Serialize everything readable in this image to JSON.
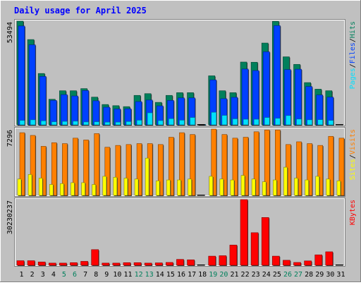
{
  "title": "Daily usage for April 2025",
  "colors": {
    "hits": "#00805c",
    "files": "#0040ff",
    "pages": "#00e0ff",
    "visits": "#ff8000",
    "sites": "#ffff00",
    "kbytes": "#ff0000",
    "weekday_label": "#000000",
    "weekend_label": "#00805c",
    "panel_bg": "#c0c0c0"
  },
  "chart_data": [
    {
      "type": "bar",
      "name": "hits-files-pages",
      "days": [
        "1",
        "2",
        "3",
        "4",
        "5",
        "6",
        "7",
        "8",
        "9",
        "10",
        "11",
        "12",
        "13",
        "14",
        "15",
        "16",
        "17",
        "18",
        "19",
        "20",
        "21",
        "22",
        "23",
        "24",
        "25",
        "26",
        "27",
        "28",
        "29",
        "30",
        "31"
      ],
      "weekend_days": [
        "5",
        "6",
        "12",
        "13",
        "19",
        "20",
        "26",
        "27"
      ],
      "y_max_label": "53494",
      "y_max": 53494,
      "legend": [
        "Pages",
        "/",
        "Files",
        "/",
        "Hits"
      ],
      "series": [
        {
          "name": "Hits",
          "values": [
            53494,
            44000,
            26500,
            13200,
            17600,
            17600,
            18700,
            14300,
            10500,
            9900,
            9400,
            15200,
            16100,
            11600,
            15200,
            16600,
            16600,
            200,
            25300,
            17600,
            16600,
            32400,
            32300,
            42200,
            53400,
            35100,
            31200,
            21800,
            18400,
            17600,
            0
          ]
        },
        {
          "name": "Files",
          "values": [
            51000,
            41300,
            25000,
            12600,
            15600,
            14900,
            17700,
            12400,
            9100,
            8200,
            8300,
            12000,
            12800,
            9800,
            12600,
            13900,
            13900,
            100,
            23200,
            13500,
            14200,
            28800,
            28000,
            37700,
            51200,
            28500,
            28700,
            19800,
            15400,
            14300,
            0
          ]
        },
        {
          "name": "Pages",
          "values": [
            2300,
            2600,
            2100,
            1600,
            1800,
            1900,
            1500,
            1600,
            1400,
            1400,
            1700,
            2400,
            6200,
            2200,
            3200,
            2400,
            3800,
            100,
            6500,
            4900,
            3100,
            2900,
            2900,
            3800,
            3400,
            4800,
            3000,
            2600,
            2700,
            2300,
            0
          ]
        }
      ]
    },
    {
      "type": "bar",
      "name": "visits-sites",
      "y_max_label": "7296",
      "y_max": 7296,
      "legend": [
        "Sites",
        "/",
        "Visits"
      ],
      "series": [
        {
          "name": "Visits",
          "values": [
            6900,
            6600,
            5400,
            5800,
            5700,
            6300,
            6100,
            6800,
            5300,
            5500,
            5600,
            5700,
            5700,
            5600,
            6400,
            6900,
            6700,
            100,
            7296,
            6700,
            6300,
            6400,
            7000,
            7200,
            7200,
            5600,
            5900,
            5700,
            5500,
            6500,
            6300
          ]
        },
        {
          "name": "Sites",
          "values": [
            1800,
            2300,
            1900,
            1200,
            1300,
            1400,
            1400,
            1200,
            2100,
            2000,
            1900,
            1800,
            4100,
            1600,
            1700,
            1700,
            1800,
            50,
            2100,
            1800,
            1700,
            2200,
            1800,
            1500,
            1700,
            3100,
            1900,
            1700,
            2100,
            1800,
            1600
          ]
        }
      ]
    },
    {
      "type": "bar",
      "name": "kbytes",
      "y_max_label": "30230237",
      "y_max": 30230237,
      "legend": [
        "KBytes"
      ],
      "series": [
        {
          "name": "KBytes",
          "values": [
            2100000,
            2100000,
            1500000,
            1000000,
            1000000,
            1200000,
            1800000,
            7200000,
            1000000,
            1000000,
            1200000,
            1200000,
            1000000,
            1100000,
            1300000,
            2700000,
            2500000,
            0,
            4200000,
            4400000,
            9300000,
            30230237,
            15000000,
            22000000,
            4200000,
            2300000,
            1300000,
            2000000,
            4800000,
            6200000,
            0
          ]
        }
      ]
    }
  ]
}
